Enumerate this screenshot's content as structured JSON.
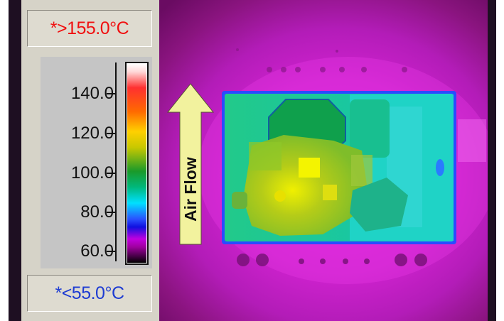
{
  "readouts": {
    "max_label": "*>155.0°C",
    "min_label": "*<55.0°C"
  },
  "scale": {
    "tick_labels": [
      "140.0",
      "120.0",
      "100.0",
      "80.0",
      "60.0"
    ]
  },
  "image": {
    "annotation": "Air Flow"
  },
  "colors": {
    "max_text": "#f01010",
    "min_text": "#1e3cd2",
    "arrow": "#f2f29e",
    "board": "#1ccf9c",
    "background_heat": "#d626d4"
  }
}
